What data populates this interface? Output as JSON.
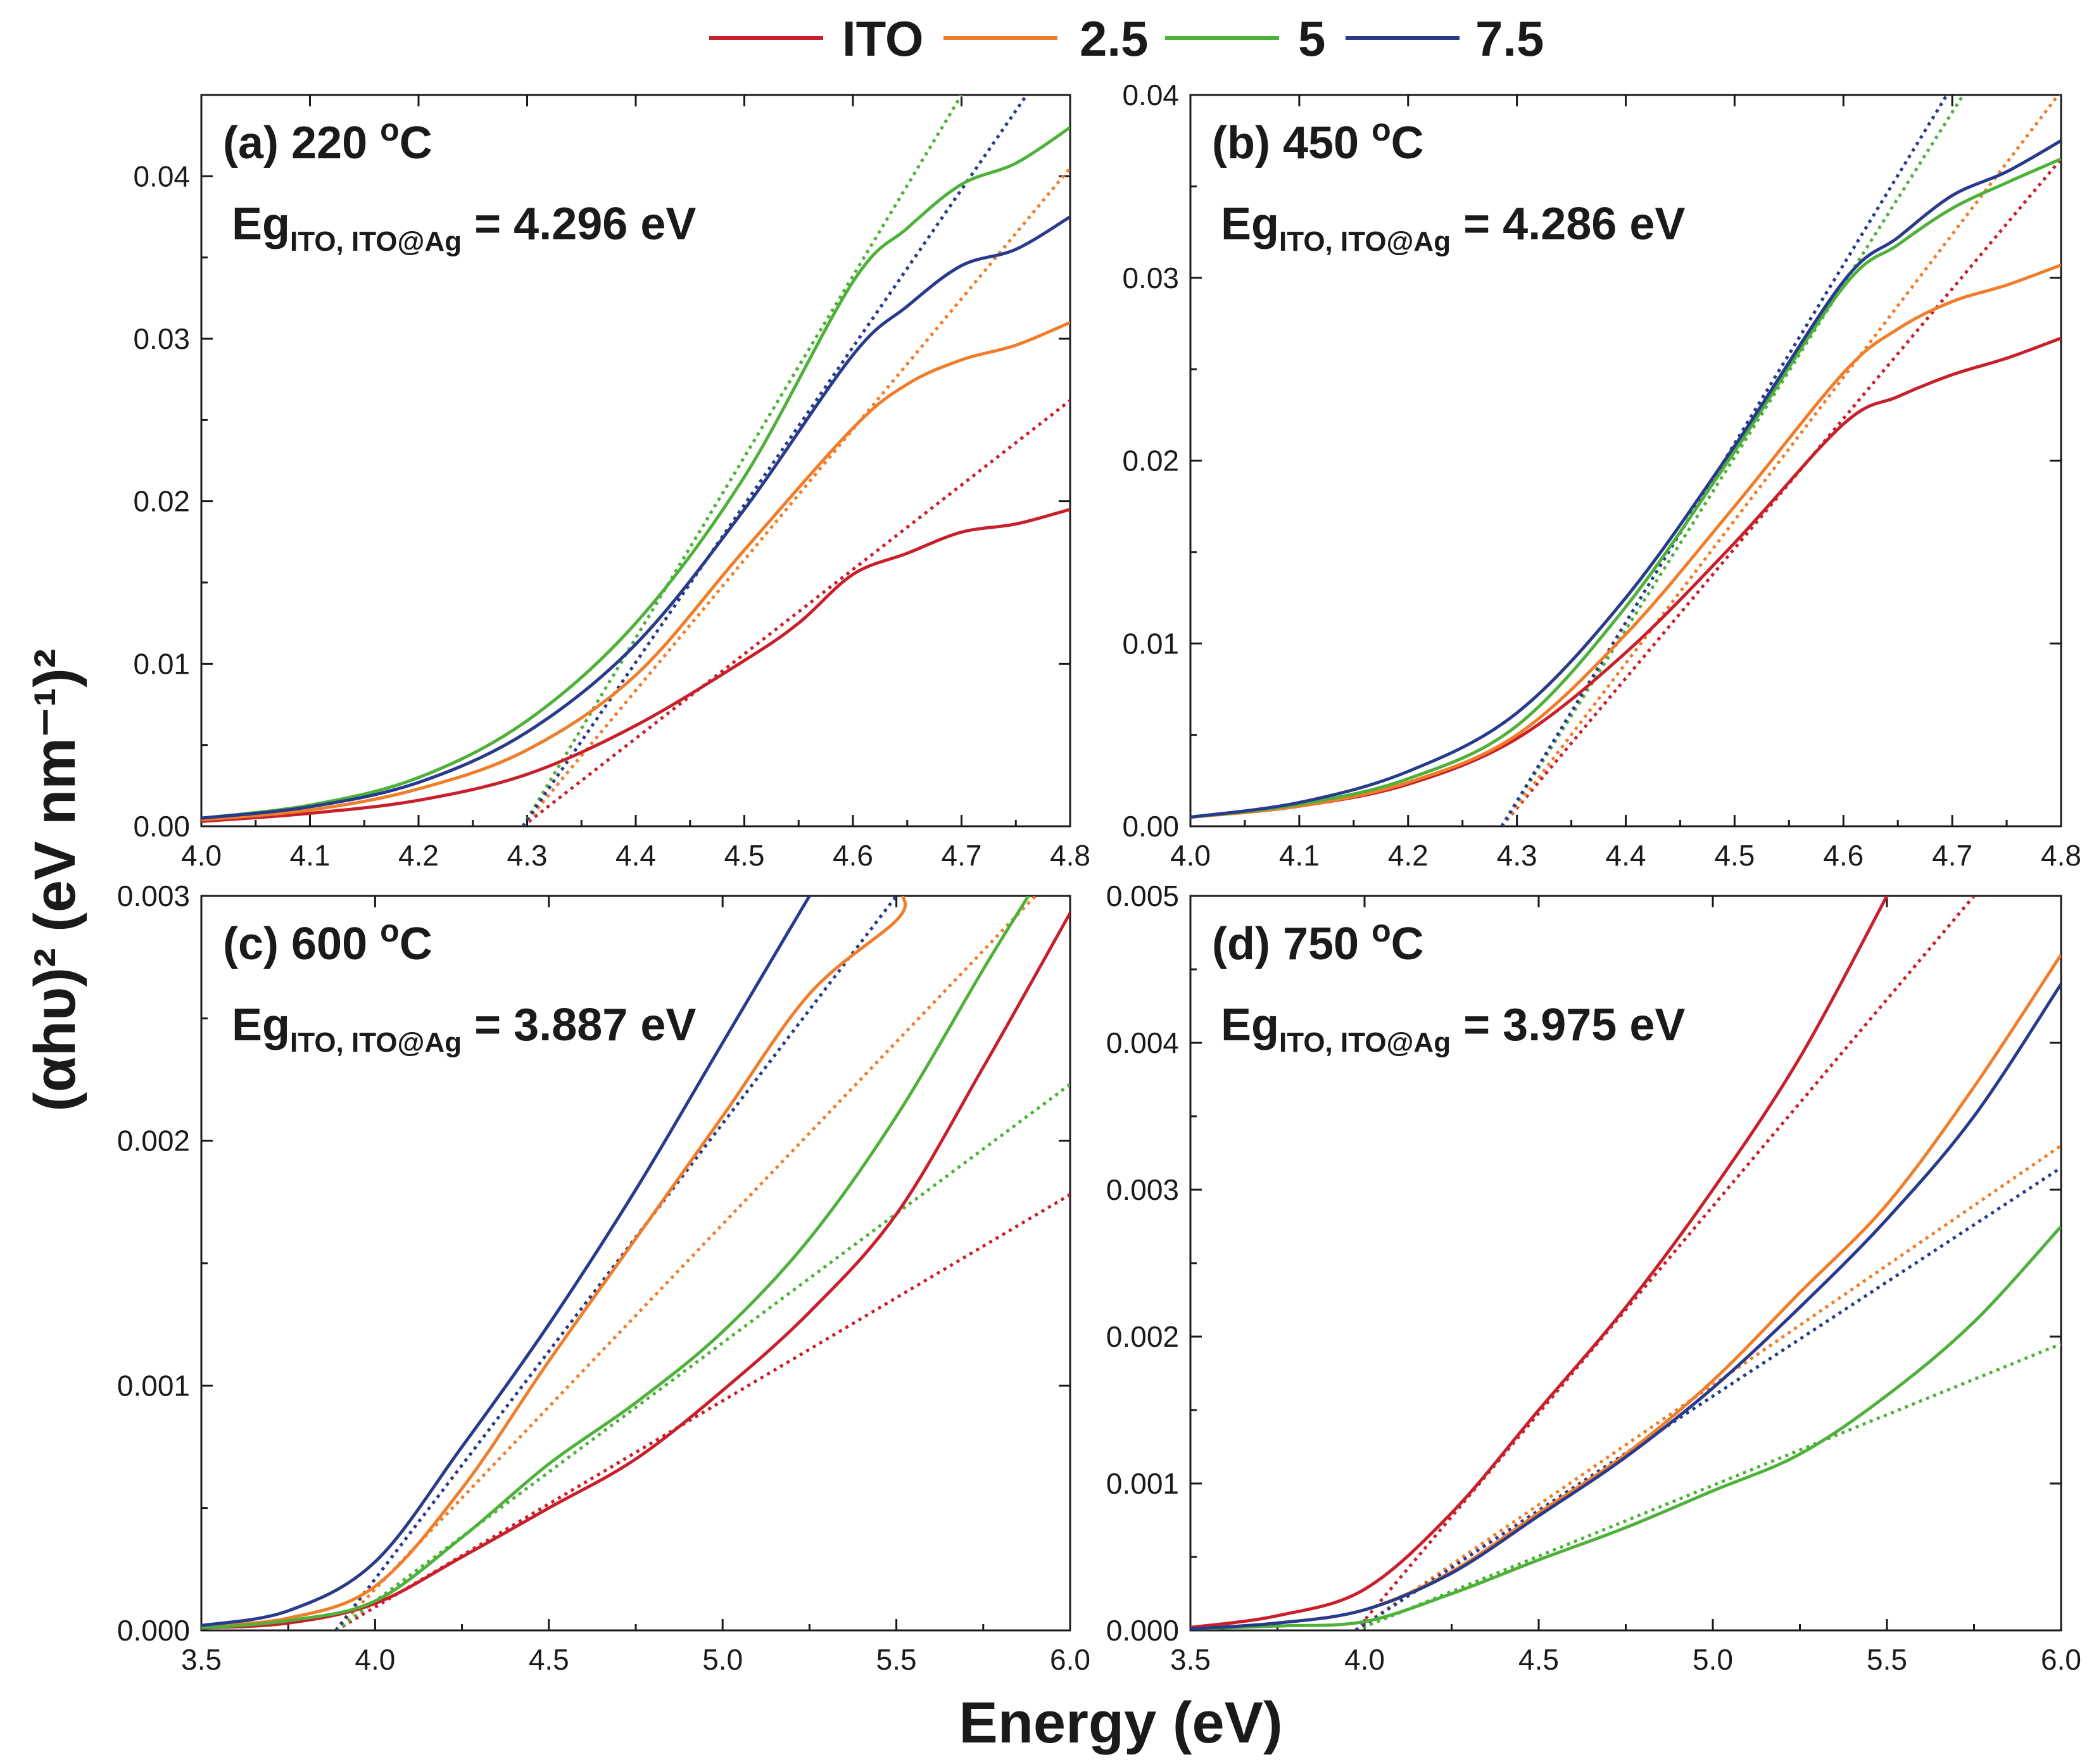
{
  "figure": {
    "ylabel": "(αhυ)² (eV nm⁻¹)²",
    "xlabel": "Energy (eV)"
  },
  "legend": [
    {
      "name": "ITO",
      "color": "#c8202a"
    },
    {
      "name": "2.5",
      "color": "#f07d2a"
    },
    {
      "name": "5",
      "color": "#4db13a"
    },
    {
      "name": "7.5",
      "color": "#283a8c"
    }
  ],
  "chart_data": [
    {
      "type": "line",
      "label": "(a) 220 ",
      "label_unit": "oC",
      "eg_prefix": "Eg",
      "eg_sub": "ITO, ITO@Ag",
      "eg_value": " = 4.296 eV",
      "xlim": [
        4.0,
        4.8
      ],
      "ylim": [
        0,
        0.045
      ],
      "xticks": [
        4.0,
        4.1,
        4.2,
        4.3,
        4.4,
        4.5,
        4.6,
        4.7,
        4.8
      ],
      "xtick_labels": [
        "4.0",
        "4.1",
        "4.2",
        "4.3",
        "4.4",
        "4.5",
        "4.6",
        "4.7",
        "4.8"
      ],
      "yticks": [
        0,
        0.01,
        0.02,
        0.03,
        0.04
      ],
      "ytick_labels": [
        "0.00",
        "0.01",
        "0.02",
        "0.03",
        "0.04"
      ],
      "series": [
        {
          "name": "ITO",
          "x": [
            4.0,
            4.1,
            4.2,
            4.3,
            4.4,
            4.5,
            4.55,
            4.6,
            4.65,
            4.7,
            4.75,
            4.8
          ],
          "y": [
            0.0003,
            0.0008,
            0.0016,
            0.0032,
            0.0062,
            0.0102,
            0.0125,
            0.0155,
            0.0168,
            0.0181,
            0.0186,
            0.0195
          ]
        },
        {
          "name": "2.5",
          "x": [
            4.0,
            4.1,
            4.2,
            4.3,
            4.4,
            4.5,
            4.6,
            4.65,
            4.7,
            4.75,
            4.8
          ],
          "y": [
            0.0004,
            0.001,
            0.0023,
            0.0047,
            0.0093,
            0.017,
            0.0245,
            0.0272,
            0.0287,
            0.0296,
            0.031
          ]
        },
        {
          "name": "5",
          "x": [
            4.0,
            4.1,
            4.2,
            4.3,
            4.4,
            4.5,
            4.6,
            4.65,
            4.7,
            4.75,
            4.8
          ],
          "y": [
            0.0005,
            0.0013,
            0.003,
            0.0065,
            0.0125,
            0.0215,
            0.0335,
            0.0368,
            0.0395,
            0.0408,
            0.043
          ]
        },
        {
          "name": "7.5",
          "x": [
            4.0,
            4.1,
            4.2,
            4.3,
            4.4,
            4.5,
            4.6,
            4.65,
            4.7,
            4.75,
            4.8
          ],
          "y": [
            0.0005,
            0.0012,
            0.0027,
            0.0058,
            0.0112,
            0.0195,
            0.029,
            0.032,
            0.0345,
            0.0355,
            0.0375
          ]
        }
      ],
      "fits": [
        {
          "name": "ITO",
          "x": [
            4.296,
            4.8
          ],
          "y": [
            0,
            0.0262
          ]
        },
        {
          "name": "2.5",
          "x": [
            4.296,
            4.8
          ],
          "y": [
            0,
            0.0405
          ]
        },
        {
          "name": "5",
          "x": [
            4.296,
            4.7
          ],
          "y": [
            0,
            0.045
          ]
        },
        {
          "name": "7.5",
          "x": [
            4.296,
            4.76
          ],
          "y": [
            0,
            0.045
          ]
        }
      ]
    },
    {
      "type": "line",
      "label": "(b) 450 ",
      "label_unit": "oC",
      "eg_prefix": "Eg",
      "eg_sub": "ITO, ITO@Ag",
      "eg_value": " = 4.286 eV",
      "xlim": [
        4.0,
        4.8
      ],
      "ylim": [
        0,
        0.04
      ],
      "xticks": [
        4.0,
        4.1,
        4.2,
        4.3,
        4.4,
        4.5,
        4.6,
        4.7,
        4.8
      ],
      "xtick_labels": [
        "4.0",
        "4.1",
        "4.2",
        "4.3",
        "4.4",
        "4.5",
        "4.6",
        "4.7",
        "4.8"
      ],
      "yticks": [
        0,
        0.01,
        0.02,
        0.03,
        0.04
      ],
      "ytick_labels": [
        "0.00",
        "0.01",
        "0.02",
        "0.03",
        "0.04"
      ],
      "series": [
        {
          "name": "ITO",
          "x": [
            4.0,
            4.1,
            4.2,
            4.3,
            4.4,
            4.5,
            4.6,
            4.65,
            4.7,
            4.75,
            4.8
          ],
          "y": [
            0.0005,
            0.0011,
            0.0023,
            0.0048,
            0.0095,
            0.0155,
            0.022,
            0.0235,
            0.0247,
            0.0256,
            0.0267
          ]
        },
        {
          "name": "2.5",
          "x": [
            4.0,
            4.1,
            4.2,
            4.3,
            4.4,
            4.5,
            4.6,
            4.65,
            4.7,
            4.75,
            4.8
          ],
          "y": [
            0.0005,
            0.0011,
            0.0024,
            0.005,
            0.0105,
            0.0175,
            0.0248,
            0.0272,
            0.0287,
            0.0296,
            0.0307
          ]
        },
        {
          "name": "5",
          "x": [
            4.0,
            4.1,
            4.2,
            4.3,
            4.4,
            4.5,
            4.6,
            4.65,
            4.7,
            4.75,
            4.8
          ],
          "y": [
            0.0005,
            0.0012,
            0.0026,
            0.0055,
            0.012,
            0.0205,
            0.0295,
            0.0318,
            0.0338,
            0.0352,
            0.0365
          ]
        },
        {
          "name": "7.5",
          "x": [
            4.0,
            4.1,
            4.2,
            4.3,
            4.4,
            4.5,
            4.6,
            4.65,
            4.7,
            4.75,
            4.8
          ],
          "y": [
            0.0005,
            0.0013,
            0.003,
            0.0062,
            0.0125,
            0.0208,
            0.0298,
            0.0322,
            0.0345,
            0.0358,
            0.0375
          ]
        }
      ],
      "fits": [
        {
          "name": "ITO",
          "x": [
            4.286,
            4.8
          ],
          "y": [
            0,
            0.0365
          ]
        },
        {
          "name": "2.5",
          "x": [
            4.286,
            4.8
          ],
          "y": [
            0,
            0.0402
          ]
        },
        {
          "name": "5",
          "x": [
            4.286,
            4.71
          ],
          "y": [
            0,
            0.04
          ]
        },
        {
          "name": "7.5",
          "x": [
            4.286,
            4.695
          ],
          "y": [
            0,
            0.04
          ]
        }
      ]
    },
    {
      "type": "line",
      "label": "(c) 600 ",
      "label_unit": "oC",
      "eg_prefix": "Eg",
      "eg_sub": "ITO, ITO@Ag",
      "eg_value": " = 3.887 eV",
      "xlim": [
        3.5,
        6.0
      ],
      "ylim": [
        0,
        0.003
      ],
      "xticks": [
        3.5,
        4.0,
        4.5,
        5.0,
        5.5,
        6.0
      ],
      "xtick_labels": [
        "3.5",
        "4.0",
        "4.5",
        "5.0",
        "5.5",
        "6.0"
      ],
      "yticks": [
        0,
        0.001,
        0.002,
        0.003
      ],
      "ytick_labels": [
        "0.000",
        "0.001",
        "0.002",
        "0.003"
      ],
      "series": [
        {
          "name": "ITO",
          "x": [
            3.5,
            3.75,
            4.0,
            4.25,
            4.5,
            4.75,
            5.0,
            5.25,
            5.5,
            5.75,
            6.0
          ],
          "y": [
            1e-05,
            3e-05,
            0.00011,
            0.0003,
            0.0005,
            0.0007,
            0.00098,
            0.0013,
            0.0017,
            0.0023,
            0.00293
          ]
        },
        {
          "name": "2.5",
          "x": [
            3.5,
            3.75,
            4.0,
            4.25,
            4.5,
            4.75,
            5.0,
            5.25,
            5.5,
            5.52
          ],
          "y": [
            2e-05,
            5e-05,
            0.00018,
            0.00058,
            0.0011,
            0.0016,
            0.0021,
            0.0026,
            0.0029,
            0.003
          ]
        },
        {
          "name": "5",
          "x": [
            3.5,
            3.75,
            4.0,
            4.25,
            4.5,
            4.75,
            5.0,
            5.25,
            5.5,
            5.75,
            5.88
          ],
          "y": [
            1e-05,
            4e-05,
            0.00012,
            0.00038,
            0.00068,
            0.00093,
            0.00122,
            0.0016,
            0.0021,
            0.0027,
            0.003
          ]
        },
        {
          "name": "7.5",
          "x": [
            3.5,
            3.75,
            4.0,
            4.25,
            4.5,
            4.75,
            5.0,
            5.25
          ],
          "y": [
            2e-05,
            8e-05,
            0.00028,
            0.00075,
            0.00125,
            0.0018,
            0.0024,
            0.003
          ]
        }
      ],
      "fits": [
        {
          "name": "ITO",
          "x": [
            3.887,
            6.0
          ],
          "y": [
            0,
            0.00178
          ]
        },
        {
          "name": "2.5",
          "x": [
            3.887,
            5.9
          ],
          "y": [
            0,
            0.003
          ]
        },
        {
          "name": "5",
          "x": [
            3.887,
            6.0
          ],
          "y": [
            0,
            0.00223
          ]
        },
        {
          "name": "7.5",
          "x": [
            3.887,
            5.5
          ],
          "y": [
            0,
            0.003
          ]
        }
      ]
    },
    {
      "type": "line",
      "label": "(d) 750 ",
      "label_unit": "oC",
      "eg_prefix": "Eg",
      "eg_sub": "ITO, ITO@Ag",
      "eg_value": " = 3.975 eV",
      "xlim": [
        3.5,
        6.0
      ],
      "ylim": [
        0,
        0.005
      ],
      "xticks": [
        3.5,
        4.0,
        4.5,
        5.0,
        5.5,
        6.0
      ],
      "xtick_labels": [
        "3.5",
        "4.0",
        "4.5",
        "5.0",
        "5.5",
        "6.0"
      ],
      "yticks": [
        0,
        0.001,
        0.002,
        0.003,
        0.004,
        0.005
      ],
      "ytick_labels": [
        "0.000",
        "0.001",
        "0.002",
        "0.003",
        "0.004",
        "0.005"
      ],
      "series": [
        {
          "name": "ITO",
          "x": [
            3.5,
            3.75,
            4.0,
            4.25,
            4.5,
            4.75,
            5.0,
            5.25,
            5.5
          ],
          "y": [
            2e-05,
            0.0001,
            0.00028,
            0.0008,
            0.0015,
            0.0022,
            0.003,
            0.0039,
            0.005
          ]
        },
        {
          "name": "2.5",
          "x": [
            3.5,
            3.75,
            4.0,
            4.25,
            4.5,
            4.75,
            5.0,
            5.25,
            5.5,
            5.75,
            6.0
          ],
          "y": [
            1e-05,
            5e-05,
            0.00014,
            0.0004,
            0.0008,
            0.0012,
            0.0017,
            0.0023,
            0.0029,
            0.0037,
            0.0046
          ]
        },
        {
          "name": "5",
          "x": [
            3.5,
            3.75,
            4.0,
            4.25,
            4.5,
            4.75,
            5.0,
            5.25,
            5.5,
            5.75,
            6.0
          ],
          "y": [
            1e-05,
            3e-05,
            6e-05,
            0.00025,
            0.00048,
            0.0007,
            0.00095,
            0.0012,
            0.0016,
            0.0021,
            0.00275
          ]
        },
        {
          "name": "7.5",
          "x": [
            3.5,
            3.75,
            4.0,
            4.25,
            4.5,
            4.75,
            5.0,
            5.25,
            5.5,
            5.75,
            6.0
          ],
          "y": [
            1e-05,
            5e-05,
            0.00014,
            0.00039,
            0.00078,
            0.00118,
            0.00165,
            0.0022,
            0.0028,
            0.0035,
            0.0044
          ]
        }
      ],
      "fits": [
        {
          "name": "ITO",
          "x": [
            3.975,
            5.75
          ],
          "y": [
            0,
            0.005
          ]
        },
        {
          "name": "2.5",
          "x": [
            3.975,
            6.0
          ],
          "y": [
            0,
            0.0033
          ]
        },
        {
          "name": "5",
          "x": [
            3.975,
            6.0
          ],
          "y": [
            0,
            0.00195
          ]
        },
        {
          "name": "7.5",
          "x": [
            3.975,
            6.0
          ],
          "y": [
            0,
            0.00315
          ]
        }
      ]
    }
  ]
}
